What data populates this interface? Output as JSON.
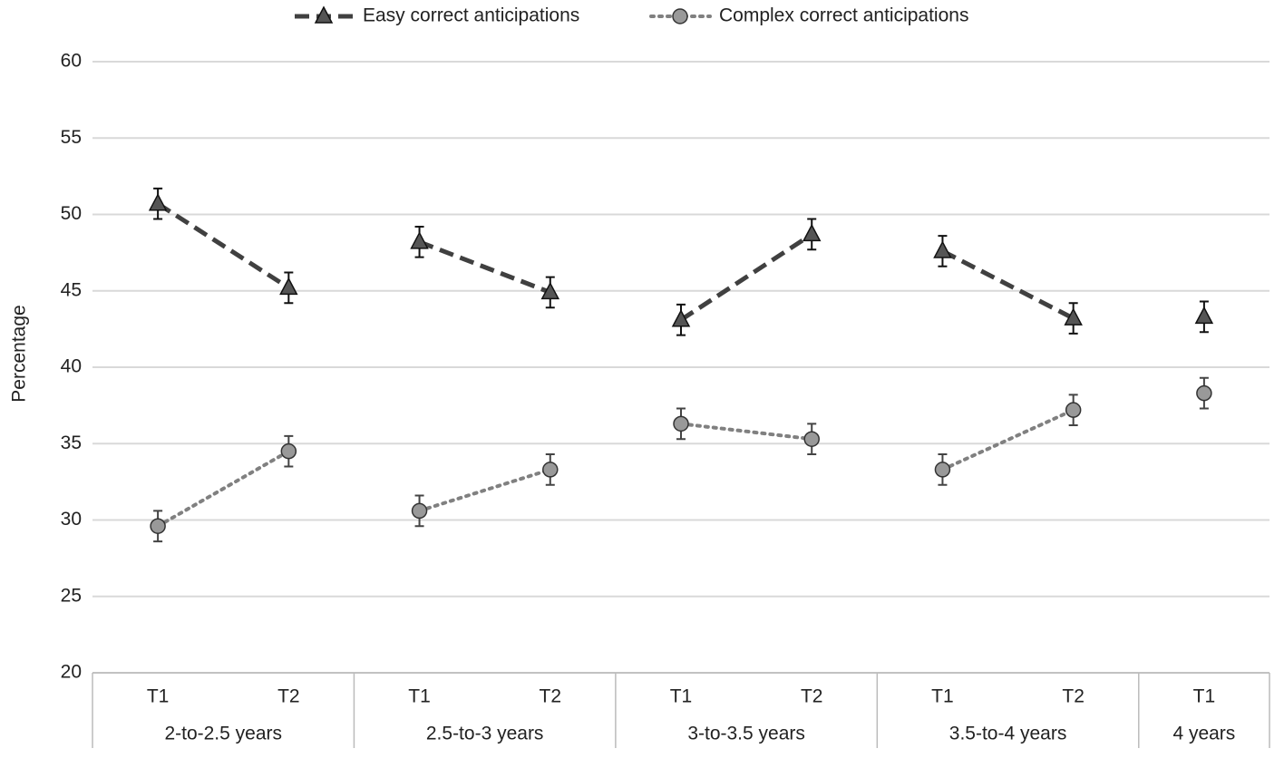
{
  "chart_data": {
    "type": "line",
    "ylabel": "Percentage",
    "groups": [
      {
        "name": "2-to-2.5 years",
        "categories": [
          "T1",
          "T2"
        ]
      },
      {
        "name": "2.5-to-3 years",
        "categories": [
          "T1",
          "T2"
        ]
      },
      {
        "name": "3-to-3.5 years",
        "categories": [
          "T1",
          "T2"
        ]
      },
      {
        "name": "3.5-to-4 years",
        "categories": [
          "T1",
          "T2"
        ]
      },
      {
        "name": "4 years",
        "categories": [
          "T1"
        ]
      }
    ],
    "series": [
      {
        "name": "Easy correct anticipations",
        "color": "#404040",
        "marker": "triangle",
        "dash": "dashed",
        "values": [
          50.7,
          45.2,
          48.2,
          44.9,
          43.1,
          48.7,
          47.6,
          43.2,
          43.3
        ],
        "errors": [
          1.0,
          1.0,
          1.0,
          1.0,
          1.0,
          1.0,
          1.0,
          1.0,
          1.0
        ]
      },
      {
        "name": "Complex correct anticipations",
        "color": "#808080",
        "marker": "circle",
        "dash": "dotted",
        "values": [
          29.6,
          34.5,
          30.6,
          33.3,
          36.3,
          35.3,
          33.3,
          37.2,
          38.3
        ],
        "errors": [
          1.0,
          1.0,
          1.0,
          1.0,
          1.0,
          1.0,
          1.0,
          1.0,
          1.0
        ]
      }
    ],
    "ylim": [
      20,
      60
    ],
    "yticks": [
      20,
      25,
      30,
      35,
      40,
      45,
      50,
      55,
      60
    ],
    "grid": true,
    "legend": "top"
  }
}
